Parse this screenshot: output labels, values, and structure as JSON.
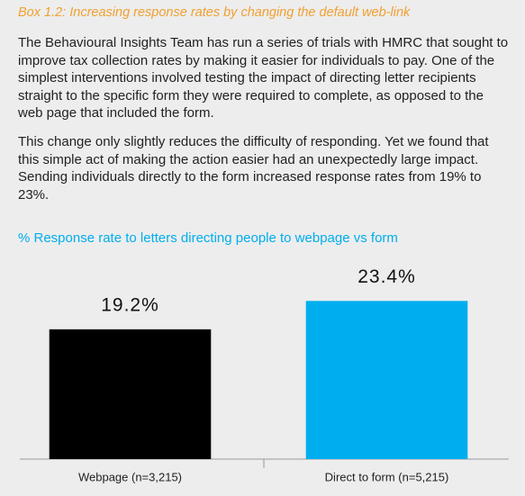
{
  "header": {
    "title": "Box 1.2:  Increasing response rates by changing the default web-link"
  },
  "paragraphs": [
    "The Behavioural Insights Team has run a series of trials with HMRC that sought to improve tax collection rates by making it easier for individuals to pay. One of the simplest interventions involved testing the impact of directing letter recipients straight to the specific form they were required to complete, as opposed to the web page that included the form.",
    "This change only slightly reduces the difficulty of responding. Yet we found that this simple act of making the action easier had an unexpectedly large impact. Sending individuals directly to the form increased response rates from 19% to 23%."
  ],
  "chart_data": {
    "type": "bar",
    "title": "% Response rate to letters directing people to webpage vs form",
    "categories": [
      "Webpage (n=3,215)",
      "Direct to form (n=5,215)"
    ],
    "values": [
      19.2,
      23.4
    ],
    "value_labels": [
      "19.2%",
      "23.4%"
    ],
    "colors": [
      "#000000",
      "#00aeef"
    ],
    "ylim": [
      0,
      29.3
    ]
  }
}
